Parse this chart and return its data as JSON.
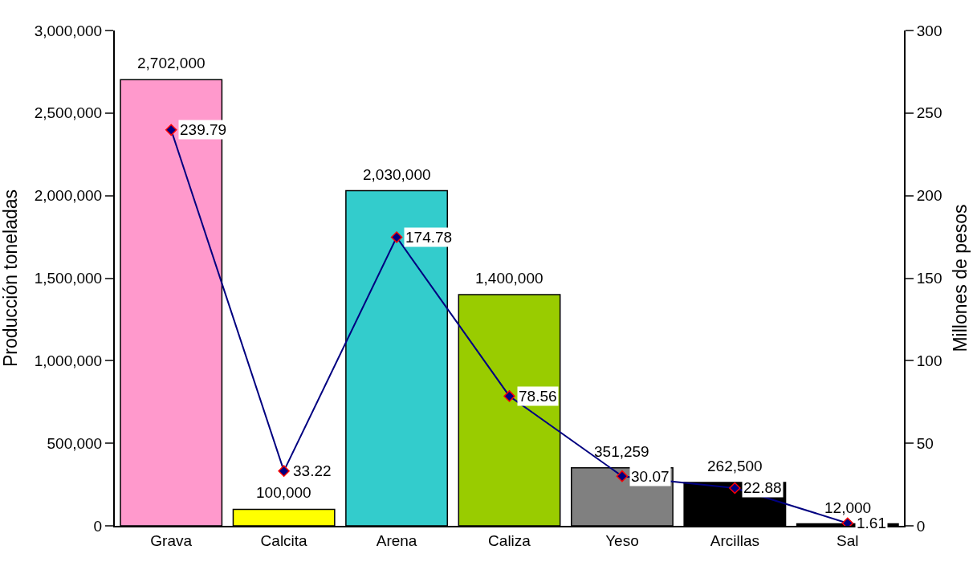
{
  "chart_data": {
    "type": "bar",
    "ylabel": "Producción toneladas",
    "y2label": "Millones de pesos",
    "categories": [
      "Grava",
      "Calcita",
      "Arena",
      "Caliza",
      "Yeso",
      "Arcillas",
      "Sal"
    ],
    "series": [
      {
        "colors": [
          "#ff99cc",
          "#ffff00",
          "#33cccc",
          "#99cc00",
          "#808080",
          "#000000",
          "#000000"
        ],
        "values": [
          2702000,
          100000,
          2030000,
          1400000,
          351259,
          262500,
          12000
        ],
        "value_labels": [
          "2,702,000",
          "100,000",
          "2,030,000",
          "1,400,000",
          "351,259",
          "262,500",
          "12,000"
        ]
      },
      {
        "type": "line",
        "axis": "y2",
        "color": "#000080",
        "marker": "diamond",
        "values": [
          239.79,
          33.22,
          174.78,
          78.56,
          30.07,
          22.88,
          1.61
        ],
        "value_labels": [
          "239.79",
          "33.22",
          "174.78",
          "78.56",
          "30.07",
          "22.88",
          "1.61"
        ]
      }
    ],
    "ylim": [
      0,
      3000000
    ],
    "yticks": [
      {
        "value": 0,
        "label": "0"
      },
      {
        "value": 500000,
        "label": "500,000"
      },
      {
        "value": 1000000,
        "label": "1,000,000"
      },
      {
        "value": 1500000,
        "label": "1,500,000"
      },
      {
        "value": 2000000,
        "label": "2,000,000"
      },
      {
        "value": 2500000,
        "label": "2,500,000"
      },
      {
        "value": 3000000,
        "label": "3,000,000"
      }
    ],
    "y2lim": [
      0,
      300
    ],
    "y2ticks": [
      0,
      50,
      100,
      150,
      200,
      250,
      300
    ],
    "data_labels": true
  }
}
